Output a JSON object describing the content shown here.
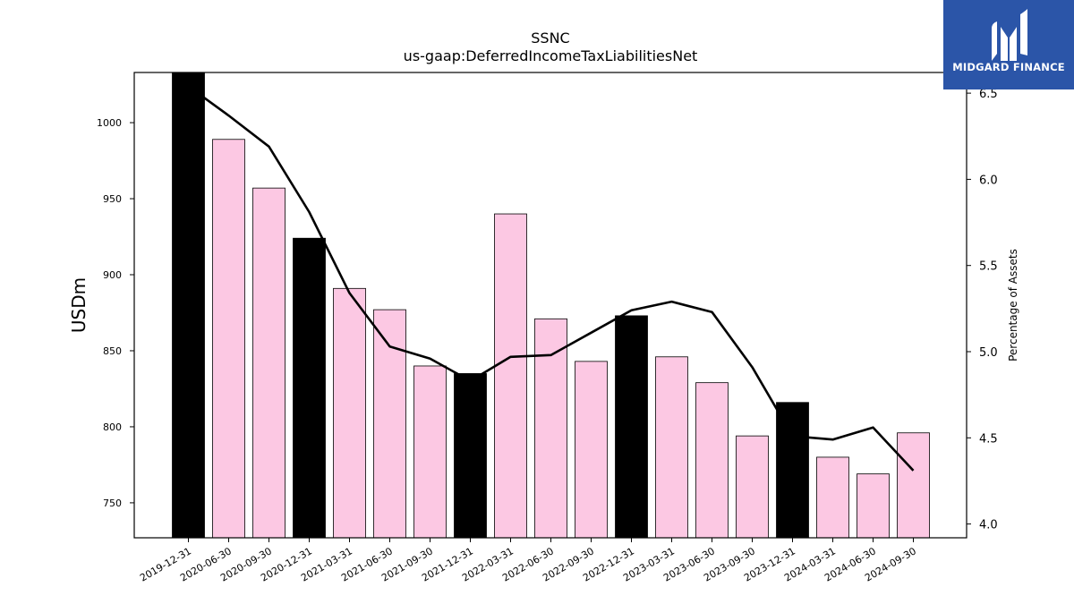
{
  "chart_data": {
    "type": "bar",
    "title": "SSNC",
    "subtitle": "us-gaap:DeferredIncomeTaxLiabilitiesNet",
    "ylabel": "USDm",
    "y2label": "Percentage of Assets",
    "ylim": [
      727,
      1033
    ],
    "y2lim": [
      3.92,
      6.62
    ],
    "yticks": [
      750,
      800,
      850,
      900,
      950,
      1000
    ],
    "y2ticks": [
      "4.0",
      "4.5",
      "5.0",
      "5.5",
      "6.0",
      "6.5"
    ],
    "categories": [
      "2019-12-31",
      "2020-06-30",
      "2020-09-30",
      "2020-12-31",
      "2021-03-31",
      "2021-06-30",
      "2021-09-30",
      "2021-12-31",
      "2022-03-31",
      "2022-06-30",
      "2022-09-30",
      "2022-12-31",
      "2023-03-31",
      "2023-06-30",
      "2023-09-30",
      "2023-12-31",
      "2024-03-31",
      "2024-06-30",
      "2024-09-30"
    ],
    "series": [
      {
        "type": "bar",
        "values": [
          1033,
          989,
          957,
          924,
          891,
          877,
          840,
          835,
          940,
          871,
          843,
          873,
          846,
          829,
          794,
          816,
          780,
          769,
          796
        ],
        "highlight": [
          true,
          false,
          false,
          true,
          false,
          false,
          false,
          true,
          false,
          false,
          false,
          true,
          false,
          false,
          false,
          true,
          false,
          false,
          false
        ]
      },
      {
        "type": "line",
        "axis": "right",
        "values": [
          6.54,
          6.37,
          6.19,
          5.81,
          5.34,
          5.03,
          4.96,
          4.83,
          4.97,
          4.98,
          5.11,
          5.24,
          5.29,
          5.23,
          4.91,
          4.51,
          4.49,
          4.56,
          4.31
        ]
      }
    ],
    "colors": {
      "highlight_bar": "#000000",
      "bar": "#fcc8e3",
      "line": "#000000"
    },
    "grid": false
  },
  "logo": {
    "text": "MIDGARD FINANCE"
  }
}
